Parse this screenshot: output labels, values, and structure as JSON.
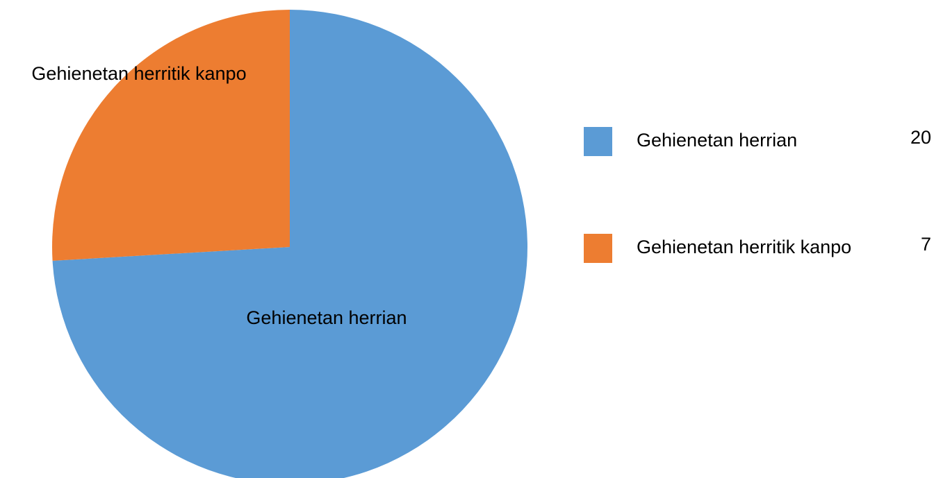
{
  "chart_data": {
    "type": "pie",
    "categories": [
      "Gehienetan herrian",
      "Gehienetan herritik kanpo"
    ],
    "values": [
      20,
      7
    ],
    "colors": [
      "#5b9bd5",
      "#ed7d31"
    ],
    "legend": "right"
  }
}
